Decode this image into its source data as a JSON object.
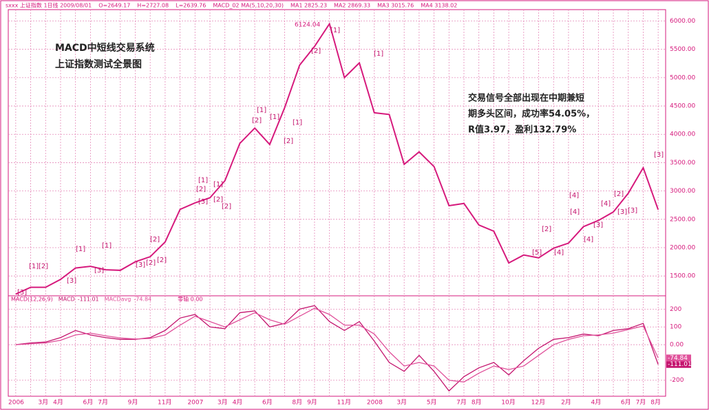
{
  "header": {
    "items": [
      "sxxx 上证指数 1日线 2009/08/01",
      "O=2649.17",
      "H=2727.08",
      "L=2639.76",
      "MACD_02 MA(5,10,20,30)",
      "MA1 2825.23",
      "MA2 2869.33",
      "MA3 3015.76",
      "MA4 3138.02"
    ]
  },
  "chart_data": [
    {
      "type": "line",
      "annotations": [
        "MACD中短线交易系统",
        "上证指数测试全景图"
      ],
      "note_lines": [
        "交易信号全部出现在中期兼短",
        "期多头区间，成功率54.05%，",
        "R值3.97，盈利132.79%"
      ],
      "peak_label": "6124.04",
      "signals": [
        "[3]",
        "[1]",
        "[2]",
        "[3]",
        "[1]",
        "[3]",
        "[1]",
        "[3]",
        "[2]",
        "[2]",
        "[2]",
        "[1]",
        "[2]",
        "[3]",
        "[1]",
        "[2]",
        "[2]",
        "[1]",
        "[2]",
        "[1]",
        "[2]",
        "[1]",
        "[2]",
        "[1]",
        "[1]",
        "[2]",
        "[5]",
        "[4]",
        "[4]",
        "[4]",
        "[4]",
        "[3]",
        "[4]",
        "[3]",
        "[2]",
        "[3]",
        "[3]"
      ],
      "categories": [
        "2006",
        null,
        "3月",
        "4月",
        null,
        "6月",
        "7月",
        null,
        "9月",
        null,
        "11月",
        null,
        "2007",
        null,
        "3月",
        "4月",
        null,
        "6月",
        null,
        "8月",
        "9月",
        null,
        "11月",
        null,
        "2008",
        null,
        "3月",
        null,
        "5月",
        null,
        "7月",
        "8月",
        null,
        "10月",
        null,
        "12月",
        null,
        "2月",
        null,
        "4月",
        null,
        "6月",
        "7月",
        "8月"
      ],
      "values": [
        1180,
        1300,
        1300,
        1440,
        1640,
        1670,
        1610,
        1600,
        1750,
        1840,
        2100,
        2675,
        2790,
        2880,
        3180,
        3840,
        4110,
        3820,
        4470,
        5220,
        5550,
        5950,
        5000,
        5260,
        4380,
        4350,
        3470,
        3690,
        3430,
        2740,
        2780,
        2400,
        2290,
        1730,
        1870,
        1820,
        1990,
        2080,
        2370,
        2480,
        2630,
        2960,
        3410,
        2670
      ],
      "color": "#d6197c",
      "ylim": [
        1150,
        6200
      ],
      "yticks": [
        {
          "value": 1500,
          "label": "1500.00"
        },
        {
          "value": 2000,
          "label": "2000.00"
        },
        {
          "value": 2500,
          "label": "2500.00"
        },
        {
          "value": 3000,
          "label": "3000.00"
        },
        {
          "value": 3500,
          "label": "3500.00"
        },
        {
          "value": 4000,
          "label": "4000.00"
        },
        {
          "value": 4500,
          "label": "4500.00"
        },
        {
          "value": 5000,
          "label": "5000.00"
        },
        {
          "value": 5500,
          "label": "5500.00"
        },
        {
          "value": 6000,
          "label": "6000.00"
        }
      ],
      "grid": true
    },
    {
      "type": "line",
      "title": "MACD(12,26,9)",
      "zero_label": "零轴 0.00",
      "series": [
        {
          "name": "MACD",
          "color": "#c4146e",
          "current": -111.01,
          "values": [
            0,
            10,
            15,
            40,
            80,
            55,
            40,
            30,
            30,
            40,
            80,
            150,
            170,
            100,
            90,
            180,
            190,
            100,
            120,
            200,
            220,
            130,
            80,
            130,
            20,
            -100,
            -150,
            -60,
            -150,
            -260,
            -180,
            -130,
            -100,
            -170,
            -90,
            -20,
            30,
            40,
            60,
            50,
            80,
            90,
            120,
            -111.01
          ]
        },
        {
          "name": "MACDavg",
          "color": "#e0509a",
          "current": -74.84,
          "values": [
            0,
            5,
            10,
            25,
            55,
            65,
            50,
            38,
            32,
            35,
            55,
            110,
            160,
            130,
            100,
            140,
            180,
            140,
            115,
            160,
            205,
            170,
            110,
            110,
            60,
            -40,
            -120,
            -100,
            -120,
            -200,
            -210,
            -160,
            -120,
            -140,
            -120,
            -60,
            0,
            30,
            50,
            55,
            65,
            85,
            105,
            -74.84
          ]
        }
      ],
      "ylim": [
        -290,
        275
      ],
      "yticks": [
        -200,
        {
          "value": 0,
          "label": "0.00"
        },
        100,
        200
      ],
      "grid": true
    }
  ]
}
